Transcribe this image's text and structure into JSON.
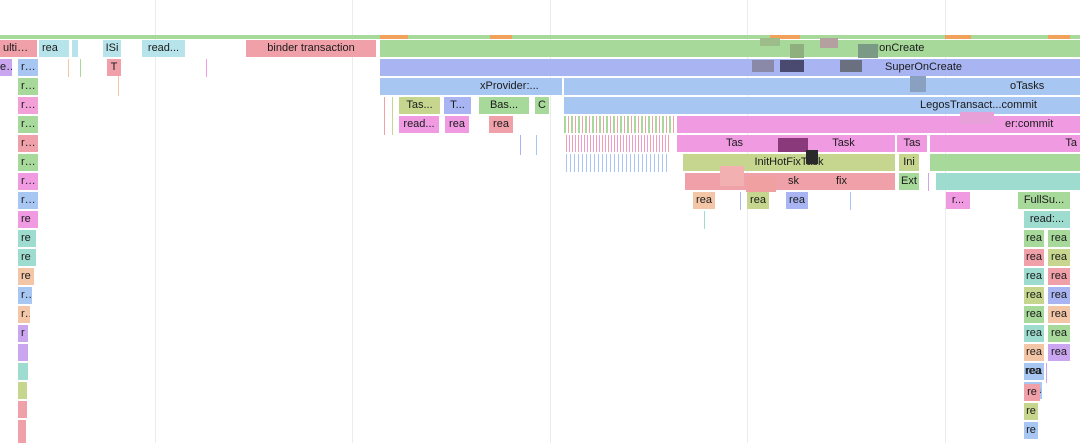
{
  "flame": {
    "l0": {
      "ultiPr": "ultiPr...",
      "rea": "rea",
      "isi": "ISi",
      "read": "read...",
      "binder": "binder transaction",
      "oncreate": "n:onCreate"
    },
    "l1": {
      "ea": "ea",
      "rea": "rea",
      "t": "T",
      "super": "SuperOnCreate"
    },
    "l2": {
      "rea": "rea",
      "provider": "xProvider:...",
      "tasks": "oTasks"
    },
    "l3": {
      "rea": "rea",
      "tas": "Tas...",
      "t": "T...",
      "bas": "Bas...",
      "c": "C",
      "commit": "LegosTransact...commit"
    },
    "l4": {
      "rea": "rea",
      "read": "read...",
      "rea2": "rea",
      "rea3": "rea",
      "commit": "er:commit"
    },
    "l5": {
      "rea": "rea",
      "tas": "Tas",
      "task": "Task",
      "tas2": "Tas",
      "ta": "Ta"
    },
    "l6": {
      "rea": "rea",
      "hotfix": "InitHotFixTask",
      "ini": "Ini"
    },
    "l7": {
      "rea": "rea",
      "sk": "sk",
      "fix": "fix",
      "ext": "Ext"
    },
    "l8": {
      "rea": "rea",
      "rea2": "rea",
      "rea3": "rea",
      "rea4": "rea",
      "r": "r...",
      "fullsu": "FullSu..."
    },
    "l9": {
      "re": "re",
      "read": "read:..."
    },
    "stack": [
      "re",
      "re",
      "re",
      "re",
      "re",
      "r"
    ],
    "right": [
      "rea",
      "rea",
      "rea",
      "rea",
      "rea",
      "rea",
      "rea",
      "rea"
    ],
    "right2": [
      "rea",
      "rea",
      "rea",
      "rea",
      "rea",
      "rea",
      "rea"
    ],
    "tail": [
      "rea",
      "rea",
      "re",
      "re",
      "re",
      "re"
    ]
  }
}
